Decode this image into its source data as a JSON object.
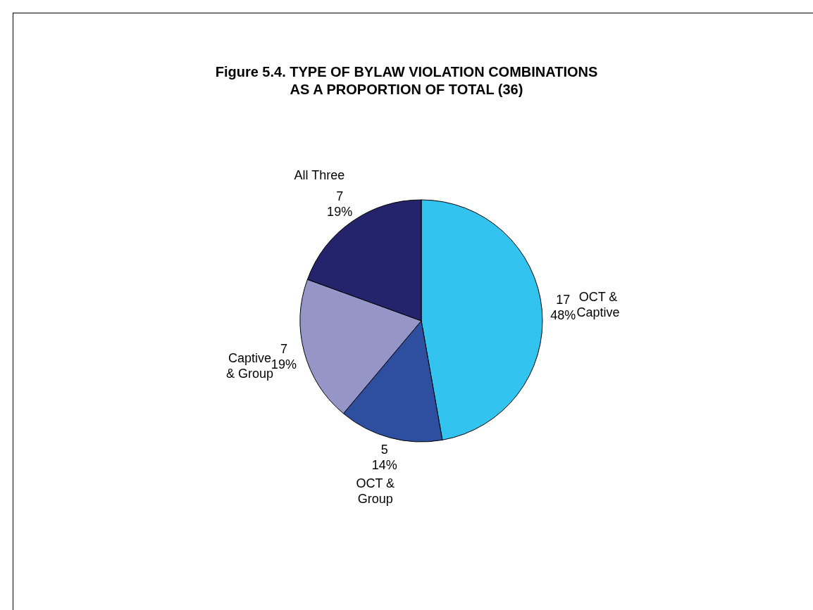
{
  "chart_data": {
    "type": "pie",
    "title": "Figure 5.4. TYPE OF BYLAW VIOLATION COMBINATIONS\nAS A PROPORTION OF TOTAL (36)",
    "categories": [
      "OCT &\nCaptive",
      "OCT &\nGroup",
      "Captive\n& Group",
      "All Three"
    ],
    "values": [
      17,
      5,
      7,
      7
    ],
    "colors": [
      "#33c3ef",
      "#2e4fa0",
      "#9595c8",
      "#24246c"
    ],
    "value_labels": [
      "17\n48%",
      "5\n14%",
      "7\n19%",
      "7\n19%"
    ]
  }
}
